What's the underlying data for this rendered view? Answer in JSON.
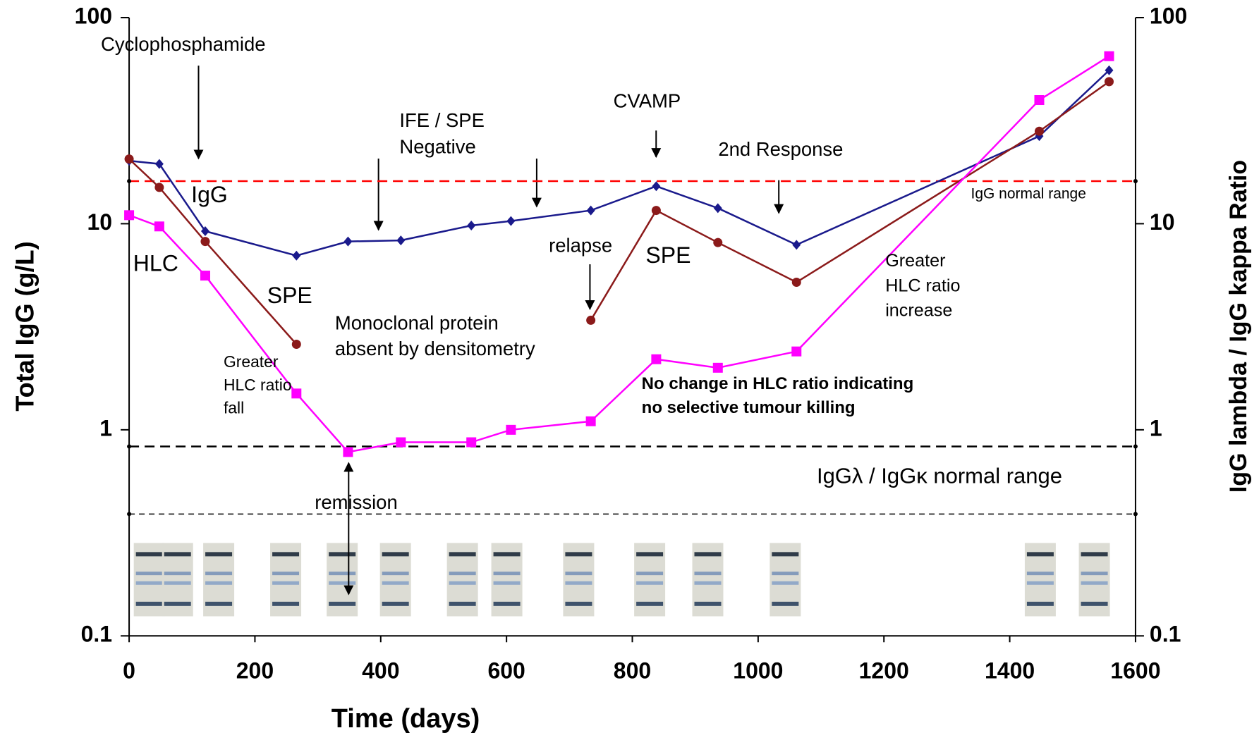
{
  "chart_data": {
    "type": "line",
    "x": [
      0,
      48,
      121,
      266,
      348,
      432,
      544,
      607,
      734,
      838,
      936,
      1061,
      1447,
      1558
    ],
    "series": [
      {
        "name": "IgG",
        "color": "#1a1a8c",
        "marker": "diamond",
        "axis": "y",
        "values": [
          20.2,
          19.5,
          9.2,
          7.0,
          8.2,
          8.3,
          9.8,
          10.3,
          11.6,
          15.2,
          11.9,
          7.9,
          26.6,
          55.5
        ]
      },
      {
        "name": "SPE",
        "color": "#8b1a1a",
        "marker": "circle",
        "axis": "y",
        "values": [
          20.6,
          15.0,
          8.2,
          2.6,
          null,
          null,
          null,
          null,
          3.4,
          11.6,
          8.1,
          5.2,
          28.1,
          48.9
        ]
      },
      {
        "name": "HLC",
        "color": "#ff00ff",
        "marker": "square",
        "axis": "y2",
        "values": [
          11.0,
          9.7,
          5.6,
          1.5,
          0.78,
          0.87,
          0.87,
          1.0,
          1.1,
          2.2,
          2.0,
          2.4,
          39.8,
          65
        ]
      }
    ],
    "xlabel": "Time (days)",
    "ylabel": "Total IgG (g/L)",
    "y2label": "IgG lambda / IgG kappa Ratio",
    "xlim": [
      0,
      1600
    ],
    "xticks": [
      0,
      200,
      400,
      600,
      800,
      1000,
      1200,
      1400,
      1600
    ],
    "ylim": [
      0.1,
      100
    ],
    "yticks": [
      0.1,
      1,
      10,
      100
    ],
    "y2lim": [
      0.1,
      100
    ],
    "y2ticks": [
      0.1,
      1,
      10,
      100
    ],
    "log_scale": true,
    "reference_lines": [
      {
        "value": 16.1,
        "axis": "y",
        "color": "#ff0000",
        "label": "IgG normal range"
      },
      {
        "value": 0.83,
        "axis": "y2",
        "color": "#000000",
        "label": "IgGλ / IgGκ normal range"
      },
      {
        "value": 0.39,
        "axis": "y2",
        "color": "#000000"
      }
    ],
    "annotations": [
      [
        "Cyclophosphamide"
      ],
      [
        "IFE / SPE",
        "Negative"
      ],
      [
        "CVAMP"
      ],
      [
        "2nd Response"
      ],
      [
        "relapse"
      ],
      [
        "Monoclonal protein",
        "absent by densitometry"
      ],
      [
        "Greater",
        "HLC ratio",
        "fall"
      ],
      [
        "No change in HLC ratio indicating",
        "no selective tumour killing"
      ],
      [
        "Greater",
        "HLC ratio",
        "increase"
      ],
      [
        "remission"
      ]
    ]
  }
}
